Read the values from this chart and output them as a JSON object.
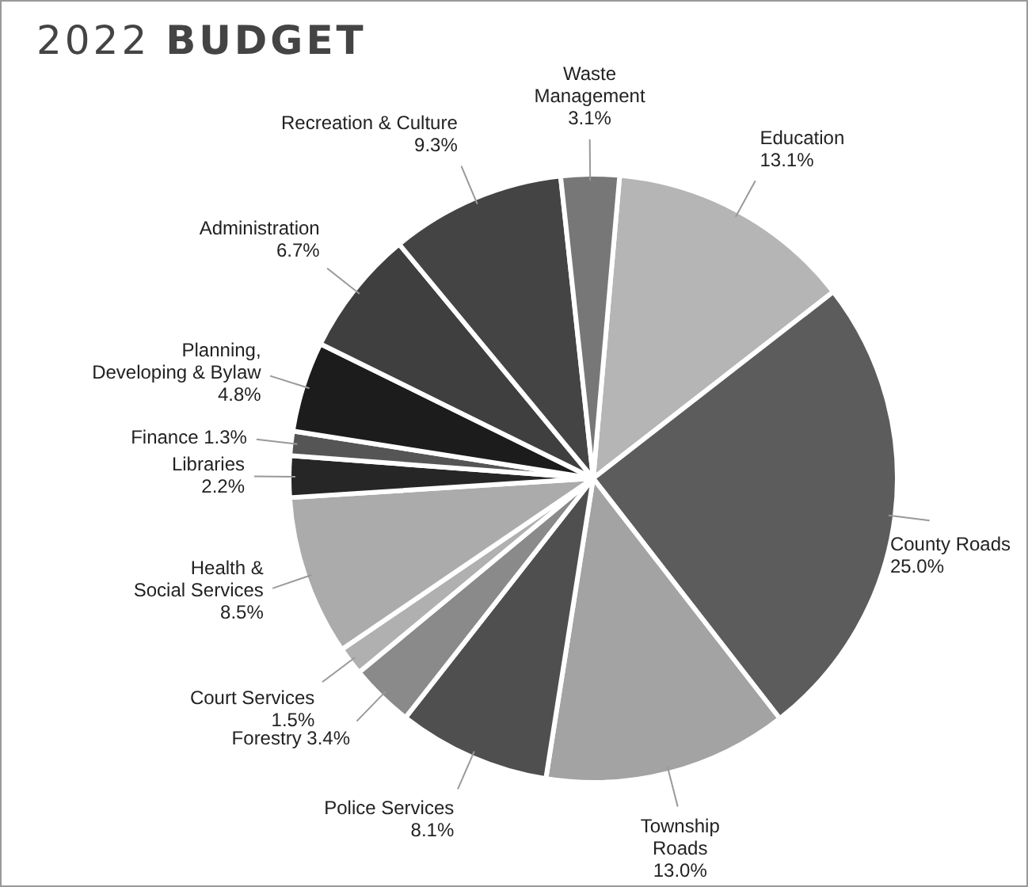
{
  "chart_data": {
    "type": "pie",
    "title": "2022 BUDGET",
    "categories": [
      "Education",
      "County Roads",
      "Township\nRoads",
      "Police Services",
      "Forestry",
      "Court Services",
      "Health &\nSocial Services",
      "Libraries",
      "Finance",
      "Planning,\nDeveloping & Bylaw",
      "Administration",
      "Recreation & Culture",
      "Waste\nManagement"
    ],
    "values": [
      13.1,
      25.0,
      13.0,
      8.1,
      3.4,
      1.5,
      8.5,
      2.2,
      1.3,
      4.8,
      6.7,
      9.3,
      3.1
    ],
    "colors": [
      "#b5b5b5",
      "#5c5c5c",
      "#a3a3a3",
      "#4f4f4f",
      "#8a8a8a",
      "#b0b0b0",
      "#ababab",
      "#262626",
      "#555555",
      "#1c1c1c",
      "#3f3f3f",
      "#444444",
      "#777777"
    ],
    "value_labels": [
      "13.1%",
      "25.0%",
      "13.0%",
      "8.1%",
      "3.4%",
      "1.5%",
      "8.5%",
      "2.2%",
      "1.3%",
      "4.8%",
      "6.7%",
      "9.3%",
      "3.1%"
    ],
    "legend": false
  }
}
